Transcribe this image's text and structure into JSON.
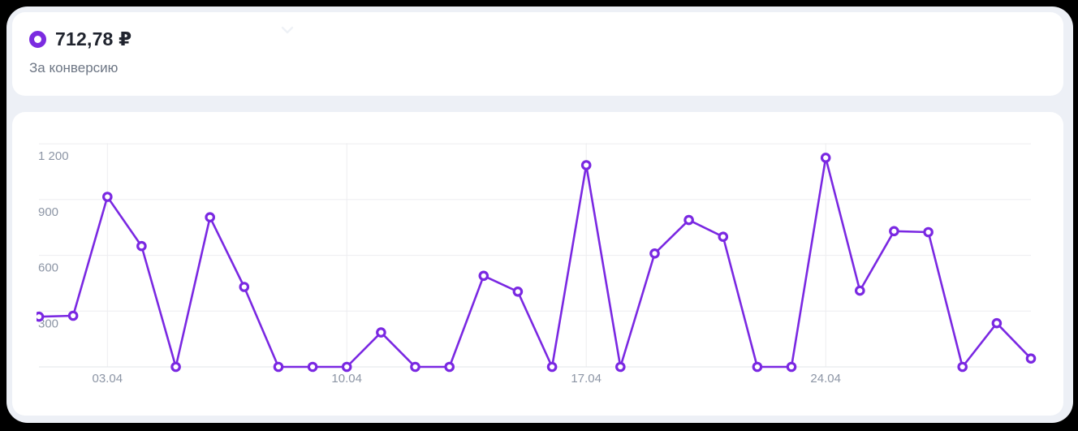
{
  "header": {
    "value": "712,78 ₽",
    "label": "За конверсию"
  },
  "colors": {
    "accent": "#7a28e2",
    "icon_ring": "#7b2be0",
    "panel_bg": "#edf0f6",
    "card_bg": "#ffffff",
    "grid": "#ededf0",
    "axis": "#e2e5e9",
    "tick_text": "#8c95a5",
    "chevron": "#eef1f6"
  },
  "chart_data": {
    "type": "line",
    "series_name": "За конверсию",
    "x": [
      "01.04",
      "02.04",
      "03.04",
      "04.04",
      "05.04",
      "06.04",
      "07.04",
      "08.04",
      "09.04",
      "10.04",
      "11.04",
      "12.04",
      "13.04",
      "14.04",
      "15.04",
      "16.04",
      "17.04",
      "18.04",
      "19.04",
      "20.04",
      "21.04",
      "22.04",
      "23.04",
      "24.04",
      "25.04",
      "26.04",
      "27.04",
      "28.04",
      "29.04",
      "30.04"
    ],
    "values": [
      270,
      275,
      915,
      650,
      0,
      805,
      430,
      0,
      0,
      0,
      185,
      0,
      0,
      490,
      405,
      0,
      1085,
      0,
      610,
      790,
      700,
      0,
      0,
      1125,
      410,
      730,
      725,
      0,
      235,
      45
    ],
    "x_tick_labels": [
      "03.04",
      "10.04",
      "17.04",
      "24.04"
    ],
    "x_tick_indices": [
      2,
      9,
      16,
      23
    ],
    "y_ticks": [
      300,
      600,
      900,
      1200
    ],
    "y_tick_labels": [
      "300",
      "600",
      "900",
      "1 200"
    ],
    "ylim": [
      0,
      1300
    ],
    "grid": true,
    "legend": "none",
    "marker": "ring"
  }
}
